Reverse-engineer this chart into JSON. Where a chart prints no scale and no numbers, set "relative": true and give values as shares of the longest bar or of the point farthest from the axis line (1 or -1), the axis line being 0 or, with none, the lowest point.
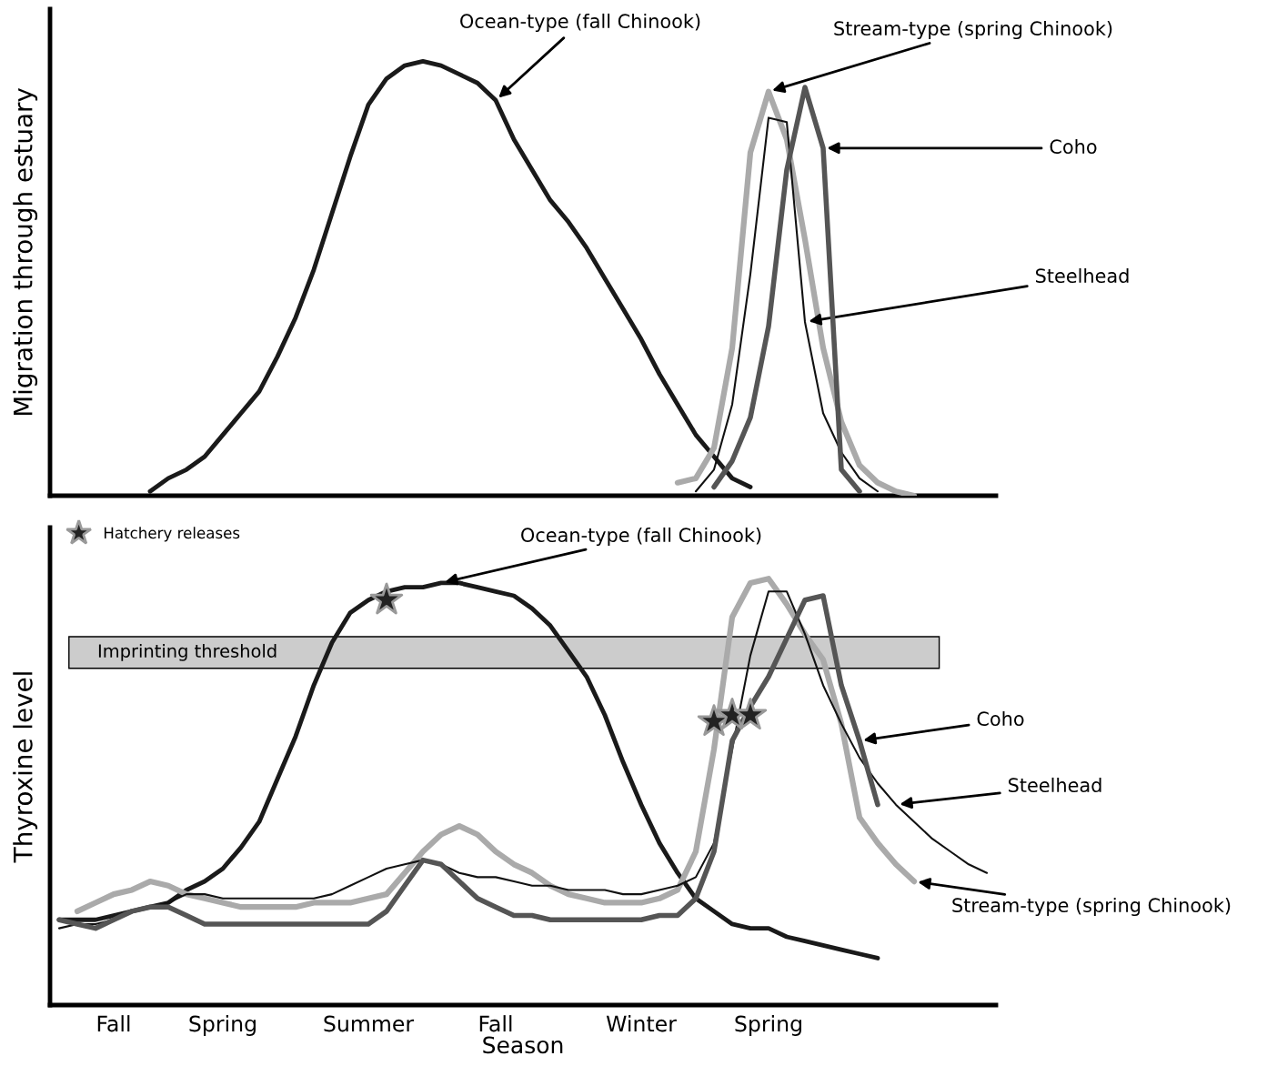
{
  "chart_data": [
    {
      "type": "line",
      "relative": true,
      "ylabel": "Migration through estuary",
      "tick_labels": false,
      "grid": false,
      "categories": [
        null,
        null,
        null,
        null,
        null,
        null,
        null,
        null,
        null,
        null,
        null,
        null,
        null,
        null,
        null,
        null,
        null,
        null,
        null,
        null,
        null,
        null,
        null,
        null,
        null,
        null,
        null,
        null,
        null,
        null,
        null,
        null,
        null,
        null,
        null,
        null,
        null,
        null,
        null,
        null,
        null,
        null,
        null,
        null,
        null,
        null,
        null,
        null,
        null,
        null,
        null,
        null
      ],
      "series": [
        {
          "name": "Ocean-type (fall Chinook)",
          "color": "#1a1a1a",
          "values": [
            null,
            null,
            null,
            null,
            null,
            0.01,
            0.04,
            0.06,
            0.09,
            0.14,
            0.19,
            0.24,
            0.32,
            0.41,
            0.52,
            0.65,
            0.78,
            0.9,
            0.96,
            0.99,
            1.0,
            0.99,
            0.97,
            0.95,
            0.91,
            0.82,
            0.75,
            0.68,
            0.63,
            0.57,
            0.5,
            0.43,
            0.36,
            0.28,
            0.21,
            0.14,
            0.09,
            0.04,
            0.02,
            null,
            null,
            null,
            null,
            null,
            null,
            null,
            null,
            null,
            null,
            null,
            null,
            null
          ]
        },
        {
          "name": "Stream-type (spring Chinook)",
          "color": "#aaaaaa",
          "values": [
            null,
            null,
            null,
            null,
            null,
            null,
            null,
            null,
            null,
            null,
            null,
            null,
            null,
            null,
            null,
            null,
            null,
            null,
            null,
            null,
            null,
            null,
            null,
            null,
            null,
            null,
            null,
            null,
            null,
            null,
            null,
            null,
            null,
            null,
            0.03,
            0.04,
            0.11,
            0.34,
            0.79,
            0.93,
            0.82,
            0.59,
            0.34,
            0.17,
            0.07,
            0.03,
            0.01,
            0.0,
            null,
            null,
            null,
            null
          ]
        },
        {
          "name": "Steelhead",
          "color": "#111111",
          "values": [
            null,
            null,
            null,
            null,
            null,
            null,
            null,
            null,
            null,
            null,
            null,
            null,
            null,
            null,
            null,
            null,
            null,
            null,
            null,
            null,
            null,
            null,
            null,
            null,
            null,
            null,
            null,
            null,
            null,
            null,
            null,
            null,
            null,
            null,
            null,
            0.01,
            0.06,
            0.21,
            0.51,
            0.87,
            0.86,
            0.4,
            0.19,
            0.1,
            0.04,
            0.01,
            null,
            null,
            null,
            null,
            null,
            null
          ]
        },
        {
          "name": "Coho",
          "color": "#555555",
          "values": [
            null,
            null,
            null,
            null,
            null,
            null,
            null,
            null,
            null,
            null,
            null,
            null,
            null,
            null,
            null,
            null,
            null,
            null,
            null,
            null,
            null,
            null,
            null,
            null,
            null,
            null,
            null,
            null,
            null,
            null,
            null,
            null,
            null,
            null,
            null,
            null,
            0.02,
            0.08,
            0.18,
            0.39,
            0.75,
            0.94,
            0.8,
            0.06,
            0.01,
            null,
            null,
            null,
            null,
            null,
            null,
            null
          ]
        }
      ]
    },
    {
      "type": "line",
      "relative": true,
      "ylabel": "Thyroxine level",
      "xlabel": "Season",
      "tick_labels": "x",
      "grid": false,
      "legend": "top left",
      "categories": [
        null,
        null,
        null,
        "Fall",
        null,
        null,
        null,
        null,
        null,
        "Spring",
        null,
        null,
        null,
        null,
        null,
        null,
        null,
        "Summer",
        null,
        null,
        null,
        null,
        null,
        null,
        "Fall",
        null,
        null,
        null,
        null,
        null,
        null,
        null,
        "Winter",
        null,
        null,
        null,
        null,
        null,
        null,
        "Spring",
        null,
        null,
        null,
        null,
        null,
        null,
        null,
        null,
        null,
        null,
        null,
        null
      ],
      "bands": [
        {
          "axis": "y",
          "from": 0.79,
          "to": 0.864,
          "label": "Imprinting threshold",
          "color": "#cccccc"
        }
      ],
      "series": [
        {
          "name": "Ocean-type (fall Chinook)",
          "color": "#1a1a1a",
          "values": [
            0.2,
            0.2,
            0.2,
            0.21,
            0.22,
            0.23,
            0.24,
            0.27,
            0.29,
            0.32,
            0.37,
            0.43,
            0.53,
            0.63,
            0.75,
            0.85,
            0.92,
            0.95,
            0.97,
            0.98,
            0.98,
            0.99,
            0.99,
            0.98,
            0.97,
            0.96,
            0.93,
            0.89,
            0.83,
            0.77,
            0.68,
            0.57,
            0.47,
            0.38,
            0.31,
            0.25,
            0.22,
            0.19,
            0.18,
            0.18,
            0.16,
            0.15,
            0.14,
            0.13,
            0.12,
            0.11,
            null,
            null,
            null,
            null,
            null,
            null
          ]
        },
        {
          "name": "Stream-type (spring Chinook)",
          "color": "#aaaaaa",
          "values": [
            null,
            0.22,
            0.24,
            0.26,
            0.27,
            0.29,
            0.28,
            0.26,
            0.25,
            0.24,
            0.23,
            0.23,
            0.23,
            0.23,
            0.24,
            0.24,
            0.24,
            0.25,
            0.26,
            0.31,
            0.36,
            0.4,
            0.42,
            0.4,
            0.36,
            0.33,
            0.31,
            0.28,
            0.26,
            0.25,
            0.24,
            0.24,
            0.24,
            0.25,
            0.27,
            0.36,
            0.6,
            0.91,
            0.99,
            1.0,
            0.94,
            0.87,
            0.81,
            0.66,
            0.44,
            0.38,
            0.33,
            0.29,
            null,
            null,
            null,
            null
          ]
        },
        {
          "name": "Steelhead",
          "color": "#111111",
          "values": [
            0.18,
            0.19,
            0.19,
            0.2,
            0.22,
            0.23,
            0.24,
            0.26,
            0.26,
            0.25,
            0.25,
            0.25,
            0.25,
            0.25,
            0.25,
            0.26,
            0.28,
            0.3,
            0.32,
            0.33,
            0.34,
            0.33,
            0.31,
            0.3,
            0.3,
            0.29,
            0.28,
            0.28,
            0.27,
            0.27,
            0.27,
            0.26,
            0.26,
            0.27,
            0.28,
            0.3,
            0.38,
            0.6,
            0.82,
            0.97,
            0.97,
            0.87,
            0.75,
            0.66,
            0.58,
            0.52,
            0.47,
            0.43,
            0.39,
            0.36,
            0.33,
            0.31
          ]
        },
        {
          "name": "Coho",
          "color": "#555555",
          "values": [
            0.2,
            0.19,
            0.18,
            0.2,
            0.22,
            0.23,
            0.23,
            0.21,
            0.19,
            0.19,
            0.19,
            0.19,
            0.19,
            0.19,
            0.19,
            0.19,
            0.19,
            0.19,
            0.22,
            0.28,
            0.34,
            0.33,
            0.29,
            0.25,
            0.23,
            0.21,
            0.21,
            0.2,
            0.2,
            0.2,
            0.2,
            0.2,
            0.2,
            0.21,
            0.21,
            0.25,
            0.36,
            0.62,
            0.7,
            0.77,
            0.86,
            0.95,
            0.96,
            0.75,
            0.62,
            0.47,
            null,
            null,
            null,
            null,
            null,
            null
          ]
        },
        {
          "name": "Hatchery releases",
          "type": "scatter",
          "marker": "star",
          "color": "#222222",
          "values": [
            null,
            null,
            null,
            null,
            null,
            null,
            null,
            null,
            null,
            null,
            null,
            null,
            null,
            null,
            null,
            null,
            null,
            null,
            0.95,
            null,
            null,
            null,
            null,
            null,
            null,
            null,
            null,
            null,
            null,
            null,
            null,
            null,
            null,
            null,
            null,
            null,
            0.665,
            0.68,
            0.68,
            null,
            null,
            null,
            null,
            null,
            null,
            null,
            null,
            null,
            null,
            null,
            null,
            null
          ]
        }
      ]
    }
  ]
}
